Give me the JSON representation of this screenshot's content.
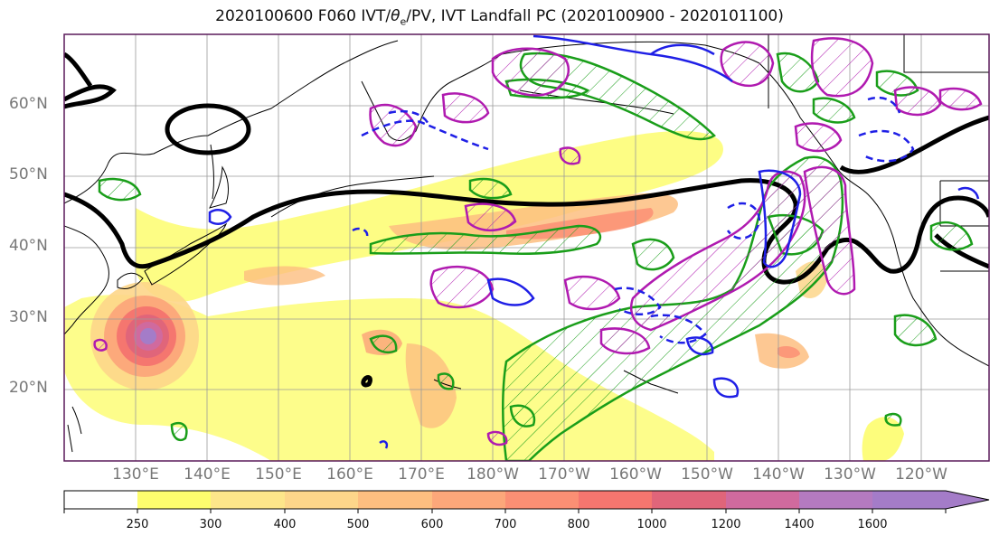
{
  "title": {
    "prefix": "2020100600 F060 IVT/",
    "theta": "θ",
    "theta_sub": "e",
    "suffix": "/PV, IVT Landfall PC (2020100900 - 2020101100)"
  },
  "map": {
    "lat_labels": [
      "60°N",
      "50°N",
      "40°N",
      "30°N",
      "20°N"
    ],
    "lon_labels": [
      "130°E",
      "140°E",
      "150°E",
      "160°E",
      "170°E",
      "180°W",
      "170°W",
      "160°W",
      "150°W",
      "140°W",
      "130°W",
      "120°W"
    ],
    "colors": {
      "land_outline": "#000000",
      "theta_e_contour": "#000000",
      "pv_positive": "#1a9e1a",
      "pv_negative": "#1f1fe6",
      "landfall_pc": "#b01ab0",
      "grid": "#9a9a9a",
      "frame": "#5a1a5a"
    }
  },
  "colorbar": {
    "ticks": [
      "250",
      "300",
      "400",
      "500",
      "600",
      "700",
      "800",
      "1000",
      "1200",
      "1400",
      "1600"
    ],
    "colors": [
      "#ffffff",
      "#fdfd6e",
      "#fde68a",
      "#fdd68a",
      "#fdbe80",
      "#fca77a",
      "#fb8f74",
      "#f5766f",
      "#e0657a",
      "#d06a9e",
      "#b47ac0",
      "#a47cc8"
    ]
  }
}
